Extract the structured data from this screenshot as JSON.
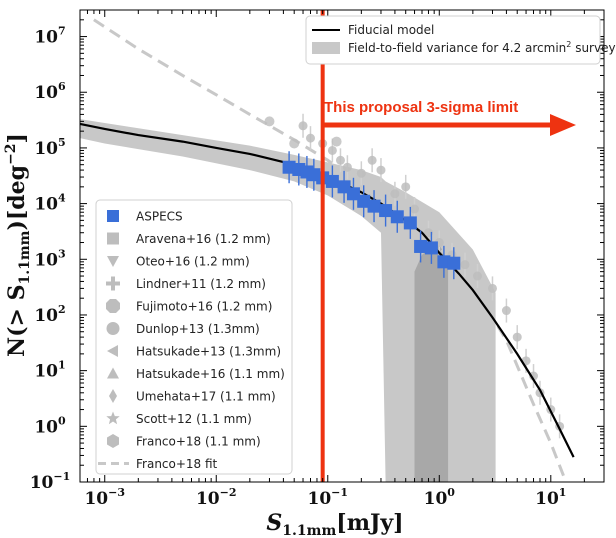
{
  "chart_data": {
    "type": "scatter",
    "xlabel": "S",
    "xlabel_sub": "1.1mm",
    "xlabel_unit": "[mJy]",
    "ylabel": "N(> S",
    "ylabel_sub": "1.1mm",
    "ylabel_unit": ")[deg",
    "ylabel_sup": "−2",
    "ylabel_end": "]",
    "xscale": "log",
    "yscale": "log",
    "xlim": [
      0.0006,
      30
    ],
    "ylim": [
      0.1,
      30000000
    ],
    "x_ticks": [
      0.001,
      0.01,
      0.1,
      1,
      10
    ],
    "x_tick_labels": [
      {
        "base": "10",
        "exp": "−3"
      },
      {
        "base": "10",
        "exp": "−2"
      },
      {
        "base": "10",
        "exp": "−1"
      },
      {
        "base": "10",
        "exp": "0"
      },
      {
        "base": "10",
        "exp": "1"
      }
    ],
    "y_ticks": [
      0.1,
      1,
      10,
      100,
      1000,
      10000,
      100000,
      1000000,
      10000000
    ],
    "y_tick_labels": [
      {
        "base": "10",
        "exp": "−1"
      },
      {
        "base": "10",
        "exp": "0"
      },
      {
        "base": "10",
        "exp": "1"
      },
      {
        "base": "10",
        "exp": "2"
      },
      {
        "base": "10",
        "exp": "3"
      },
      {
        "base": "10",
        "exp": "4"
      },
      {
        "base": "10",
        "exp": "5"
      },
      {
        "base": "10",
        "exp": "6"
      },
      {
        "base": "10",
        "exp": "7"
      }
    ],
    "grid": false,
    "colors": {
      "fiducial": "#000000",
      "variance_outer": "#c8c8c8",
      "variance_inner": "#a8a8a8",
      "aspecs": "#3a6fd8",
      "literature": "#bdbdbd",
      "franco_fit": "#c8c8c8",
      "limit": "#ee3311"
    },
    "top_legend": {
      "position": "top-right",
      "fiducial_label": "Fiducial model",
      "variance_label": "Field-to-field variance for 4.2 arcmin",
      "variance_label_sup": "2",
      "variance_label_end": " survey"
    },
    "left_legend": {
      "position": "lower-left",
      "entries": [
        {
          "label": "ASPECS",
          "marker": "square",
          "color": "#3a6fd8"
        },
        {
          "label": "Aravena+16 (1.2 mm)",
          "marker": "square",
          "color": "#bdbdbd"
        },
        {
          "label": "Oteo+16 (1.2 mm)",
          "marker": "triangle-down",
          "color": "#bdbdbd"
        },
        {
          "label": "Lindner+11 (1.2 mm)",
          "marker": "plus",
          "color": "#bdbdbd"
        },
        {
          "label": "Fujimoto+16 (1.2 mm)",
          "marker": "octagon",
          "color": "#bdbdbd"
        },
        {
          "label": "Dunlop+13 (1.3mm)",
          "marker": "circle",
          "color": "#bdbdbd"
        },
        {
          "label": "Hatsukade+13 (1.3mm)",
          "marker": "triangle-left",
          "color": "#bdbdbd"
        },
        {
          "label": "Hatsukade+16 (1.1 mm)",
          "marker": "triangle-up",
          "color": "#bdbdbd"
        },
        {
          "label": "Umehata+17 (1.1 mm)",
          "marker": "diamond",
          "color": "#bdbdbd"
        },
        {
          "label": "Scott+12 (1.1 mm)",
          "marker": "star",
          "color": "#bdbdbd"
        },
        {
          "label": "Franco+18 (1.1 mm)",
          "marker": "hexagon",
          "color": "#bdbdbd"
        },
        {
          "label": "Franco+18 fit",
          "marker": "dashed-line",
          "color": "#c8c8c8"
        }
      ]
    },
    "annotation": {
      "text": "This proposal 3-sigma limit",
      "limit_x": 0.09
    },
    "series": [
      {
        "name": "Fiducial model",
        "kind": "line",
        "x": [
          0.0006,
          0.001,
          0.002,
          0.005,
          0.01,
          0.02,
          0.05,
          0.1,
          0.2,
          0.3,
          0.5,
          0.7,
          1,
          1.5,
          2,
          3,
          5,
          8,
          12,
          16
        ],
        "y": [
          270000,
          220000,
          170000,
          130000,
          100000,
          78000,
          50000,
          30000,
          16000,
          10000,
          5000,
          3000,
          1300,
          550,
          280,
          90,
          20,
          4.5,
          0.9,
          0.28
        ]
      },
      {
        "name": "Field-to-field variance outer",
        "kind": "band",
        "x": [
          0.0006,
          0.001,
          0.005,
          0.02,
          0.05,
          0.1,
          0.2,
          0.3,
          0.33,
          0.5,
          1,
          2,
          3.2
        ],
        "y_low": [
          150000,
          120000,
          70000,
          40000,
          25000,
          14000,
          6000,
          3000,
          0.1,
          0.1,
          0.1,
          0.1,
          0.1
        ],
        "y_high": [
          330000,
          280000,
          170000,
          110000,
          75000,
          55000,
          40000,
          30000,
          25000,
          16000,
          7000,
          1500,
          250
        ]
      },
      {
        "name": "Field-to-field variance inner",
        "kind": "band",
        "x": [
          0.6,
          0.7,
          0.8,
          1.0,
          1.2
        ],
        "y_low": [
          0.1,
          0.1,
          0.1,
          0.1,
          0.1
        ],
        "y_high": [
          600,
          1200,
          1500,
          1800,
          1000
        ]
      },
      {
        "name": "ASPECS",
        "kind": "markers",
        "x": [
          0.045,
          0.055,
          0.065,
          0.075,
          0.09,
          0.11,
          0.14,
          0.17,
          0.21,
          0.26,
          0.33,
          0.42,
          0.55,
          0.68,
          0.85,
          1.1,
          1.35
        ],
        "y": [
          45000,
          41000,
          37000,
          33000,
          29000,
          25000,
          20000,
          15000,
          11000,
          9000,
          7500,
          5800,
          4500,
          1700,
          1600,
          900,
          850
        ]
      },
      {
        "name": "Franco+18 fit",
        "kind": "dashed",
        "x": [
          0.0008,
          0.002,
          0.005,
          0.01,
          0.02,
          0.05,
          0.1,
          0.2,
          0.5,
          1,
          2,
          4,
          7,
          10,
          13
        ],
        "y": [
          20000000,
          6000000,
          2000000,
          900000,
          400000,
          140000,
          60000,
          22000,
          6000,
          1600,
          350,
          35,
          2.5,
          0.5,
          0.13
        ]
      },
      {
        "name": "Literature",
        "kind": "scatter",
        "x": [
          0.06,
          0.07,
          0.09,
          0.11,
          0.13,
          0.15,
          0.2,
          0.25,
          0.3,
          0.4,
          0.5,
          0.6,
          0.8,
          1.0,
          1.3,
          1.7,
          2.2,
          3,
          4,
          5,
          6,
          7,
          8,
          10,
          12
        ],
        "y": [
          250000,
          150000,
          120000,
          90000,
          60000,
          45000,
          35000,
          60000,
          40000,
          15000,
          20000,
          8000,
          3000,
          2000,
          1200,
          800,
          500,
          300,
          120,
          40,
          15,
          8,
          4,
          2,
          1
        ]
      },
      {
        "name": "Dunlop extras",
        "kind": "scatter",
        "x": [
          0.03,
          0.05,
          0.12
        ],
        "y": [
          300000,
          120000,
          130000
        ]
      }
    ]
  }
}
